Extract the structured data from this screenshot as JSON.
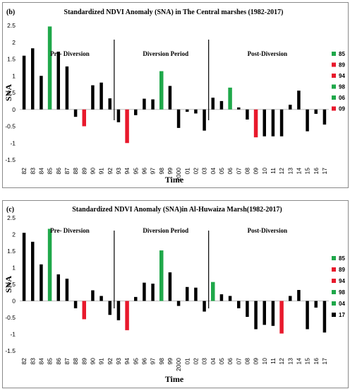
{
  "chart_data": [
    {
      "type": "bar",
      "panel": "(b)",
      "title": "Standardized NDVI Anomaly (SNA) in The Central marshes (1982-2017)",
      "xlabel": "Time",
      "ylabel": "SNA",
      "ylim": [
        -1.5,
        2.5
      ],
      "yticks": [
        "2.5",
        "2",
        "1.5",
        "1",
        "0.5",
        "0",
        "-0.5",
        "-1",
        "-1.5"
      ],
      "categories": [
        "82",
        "83",
        "84",
        "85",
        "86",
        "87",
        "88",
        "89",
        "90",
        "91",
        "92",
        "93",
        "94",
        "95",
        "96",
        "97",
        "98",
        "99",
        "2000",
        "01",
        "02",
        "03",
        "04",
        "05",
        "06",
        "07",
        "08",
        "09",
        "10",
        "11",
        "12",
        "13",
        "14",
        "15",
        "16",
        "17"
      ],
      "values": [
        1.6,
        1.82,
        1.0,
        2.47,
        1.72,
        1.28,
        -0.22,
        -0.5,
        0.72,
        0.8,
        0.33,
        -0.38,
        -1.0,
        -0.17,
        0.32,
        0.3,
        1.14,
        0.7,
        -0.55,
        -0.07,
        -0.12,
        -0.63,
        0.35,
        0.25,
        0.65,
        0.06,
        -0.3,
        -0.83,
        -0.8,
        -0.8,
        -0.8,
        0.14,
        0.56,
        -0.65,
        -0.13,
        -0.45
      ],
      "colors": [
        "black",
        "black",
        "black",
        "green",
        "black",
        "black",
        "black",
        "red",
        "black",
        "black",
        "black",
        "black",
        "red",
        "black",
        "black",
        "black",
        "green",
        "black",
        "black",
        "black",
        "black",
        "black",
        "black",
        "black",
        "green",
        "black",
        "black",
        "red",
        "black",
        "black",
        "black",
        "black",
        "black",
        "black",
        "black",
        "black"
      ],
      "divisions_after": [
        "92",
        "03"
      ],
      "regions": [
        "Pre- Diversion",
        "Diversion Period",
        "Post-Diversion"
      ],
      "legend": [
        {
          "label": "85",
          "color": "#1fa84a"
        },
        {
          "label": "89",
          "color": "#e8192c"
        },
        {
          "label": "94",
          "color": "#e8192c"
        },
        {
          "label": "98",
          "color": "#1fa84a"
        },
        {
          "label": "06",
          "color": "#1fa84a"
        },
        {
          "label": "09",
          "color": "#e8192c"
        }
      ]
    },
    {
      "type": "bar",
      "panel": "(c)",
      "title": "Standardized NDVI Anomaly (SNA)in Al-Huwaiza Marsh(1982-2017)",
      "xlabel": "Time",
      "ylabel": "SNA",
      "ylim": [
        -1.5,
        2.5
      ],
      "yticks": [
        "2.5",
        "2",
        "1.5",
        "1",
        "0.5",
        "0",
        "-0.5",
        "-1",
        "-1.5"
      ],
      "categories": [
        "82",
        "83",
        "84",
        "85",
        "86",
        "87",
        "88",
        "89",
        "90",
        "91",
        "92",
        "93",
        "94",
        "95",
        "96",
        "97",
        "98",
        "99",
        "2000",
        "01",
        "02",
        "03",
        "04",
        "05",
        "06",
        "07",
        "08",
        "09",
        "10",
        "11",
        "12",
        "13",
        "14",
        "15",
        "16",
        "17"
      ],
      "values": [
        2.05,
        1.78,
        1.1,
        2.17,
        0.8,
        0.67,
        -0.22,
        -0.55,
        0.32,
        0.15,
        -0.42,
        -0.58,
        -0.88,
        0.12,
        0.55,
        0.52,
        1.52,
        0.86,
        -0.15,
        0.42,
        0.4,
        -0.32,
        0.57,
        0.2,
        0.15,
        -0.22,
        -0.48,
        -0.85,
        -0.72,
        -0.75,
        -0.98,
        0.15,
        0.33,
        -0.85,
        -0.2,
        -0.95
      ],
      "colors": [
        "black",
        "black",
        "black",
        "green",
        "black",
        "black",
        "black",
        "red",
        "black",
        "black",
        "black",
        "black",
        "red",
        "black",
        "black",
        "black",
        "green",
        "black",
        "black",
        "black",
        "black",
        "black",
        "green",
        "black",
        "black",
        "black",
        "black",
        "black",
        "black",
        "black",
        "red",
        "black",
        "black",
        "black",
        "black",
        "black"
      ],
      "divisions_after": [
        "92",
        "03"
      ],
      "regions": [
        "Pre- Diversion",
        "Diversion Period",
        "Post-Diversion"
      ],
      "legend": [
        {
          "label": "85",
          "color": "#1fa84a"
        },
        {
          "label": "89",
          "color": "#e8192c"
        },
        {
          "label": "94",
          "color": "#e8192c"
        },
        {
          "label": "98",
          "color": "#1fa84a"
        },
        {
          "label": "04",
          "color": "#1fa84a"
        },
        {
          "label": "17",
          "color": "#000000"
        }
      ]
    }
  ],
  "colors": {
    "black": "#000000",
    "green": "#1fa84a",
    "red": "#e8192c",
    "zero_line": "#bdbdbd"
  }
}
